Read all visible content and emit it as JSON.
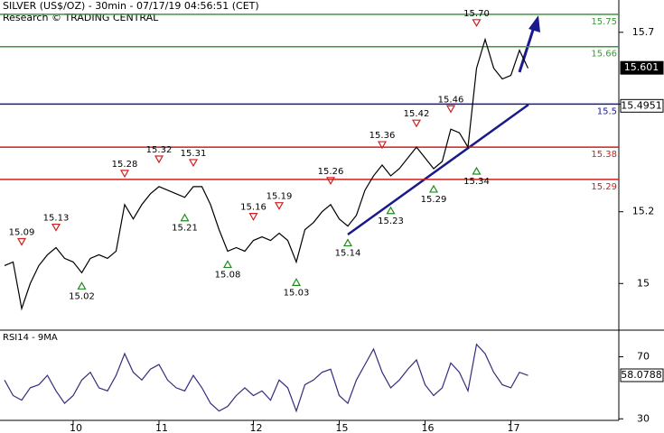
{
  "chart_data": [
    {
      "type": "line",
      "title": "SILVER (US$/OZ) - 30min - 07/17/19 04:56:51 (CET)",
      "subtitle": "Research © TRADING CENTRAL",
      "categories": [
        null,
        null,
        null,
        null,
        null,
        null,
        null,
        null,
        "10",
        null,
        null,
        null,
        null,
        null,
        null,
        null,
        null,
        null,
        "11",
        null,
        null,
        null,
        null,
        null,
        null,
        null,
        null,
        null,
        null,
        "12",
        null,
        null,
        null,
        null,
        null,
        null,
        null,
        null,
        null,
        "15",
        null,
        null,
        null,
        null,
        null,
        null,
        null,
        null,
        null,
        "16",
        null,
        null,
        null,
        null,
        null,
        null,
        null,
        null,
        null,
        "17",
        null,
        null
      ],
      "series": [
        {
          "color": "#000000",
          "values": [
            15.05,
            15.06,
            14.93,
            15.0,
            15.05,
            15.08,
            15.1,
            15.07,
            15.06,
            15.03,
            15.07,
            15.08,
            15.07,
            15.09,
            15.22,
            15.18,
            15.22,
            15.25,
            15.27,
            15.26,
            15.25,
            15.24,
            15.27,
            15.27,
            15.22,
            15.15,
            15.09,
            15.1,
            15.09,
            15.12,
            15.13,
            15.12,
            15.14,
            15.12,
            15.06,
            15.15,
            15.17,
            15.2,
            15.22,
            15.18,
            15.16,
            15.19,
            15.26,
            15.3,
            15.33,
            15.3,
            15.32,
            15.35,
            15.38,
            15.35,
            15.32,
            15.34,
            15.43,
            15.42,
            15.38,
            15.6,
            15.68,
            15.6,
            15.57,
            15.58,
            15.65,
            15.6
          ]
        }
      ],
      "ylim": [
        14.87,
        15.79
      ],
      "yticks": [
        15.0,
        15.2,
        15.5,
        15.7
      ],
      "levels": [
        {
          "value": 15.75,
          "color": "#3a9a3a"
        },
        {
          "value": 15.66,
          "color": "#3a9a3a"
        },
        {
          "value": 15.5,
          "color": "#1a1a8c"
        },
        {
          "value": 15.38,
          "color": "#c82020"
        },
        {
          "value": 15.29,
          "color": "#c82020"
        }
      ],
      "peaks": {
        "color": "#d02020",
        "values": [
          null,
          null,
          15.09,
          null,
          null,
          null,
          15.13,
          null,
          null,
          null,
          null,
          null,
          null,
          null,
          15.28,
          null,
          null,
          null,
          15.32,
          null,
          null,
          null,
          15.31,
          null,
          null,
          null,
          null,
          null,
          null,
          15.16,
          null,
          null,
          15.19,
          null,
          null,
          null,
          null,
          null,
          15.26,
          null,
          null,
          null,
          null,
          null,
          15.36,
          null,
          null,
          null,
          15.42,
          null,
          null,
          null,
          15.46,
          null,
          null,
          15.7,
          null,
          null,
          null,
          null,
          null,
          null
        ],
        "value_labels": [
          null,
          null,
          "15.09",
          null,
          null,
          null,
          "15.13",
          null,
          null,
          null,
          null,
          null,
          null,
          null,
          "15.28",
          null,
          null,
          null,
          "15.32",
          null,
          null,
          null,
          "15.31",
          null,
          null,
          null,
          null,
          null,
          null,
          "15.16",
          null,
          null,
          "15.19",
          null,
          null,
          null,
          null,
          null,
          "15.26",
          null,
          null,
          null,
          null,
          null,
          "15.36",
          null,
          null,
          null,
          "15.42",
          null,
          null,
          null,
          "15.46",
          null,
          null,
          "15.70",
          null,
          null,
          null,
          null,
          null,
          null
        ]
      },
      "troughs": {
        "color": "#208a20",
        "values": [
          null,
          null,
          null,
          null,
          null,
          null,
          null,
          null,
          null,
          15.02,
          null,
          null,
          null,
          null,
          null,
          null,
          null,
          null,
          null,
          null,
          null,
          15.21,
          null,
          null,
          null,
          null,
          15.08,
          null,
          null,
          null,
          null,
          null,
          null,
          null,
          15.03,
          null,
          null,
          null,
          null,
          null,
          15.14,
          null,
          null,
          null,
          null,
          15.23,
          null,
          null,
          null,
          null,
          15.29,
          null,
          null,
          null,
          null,
          15.34,
          null,
          null,
          null,
          null,
          null,
          null
        ],
        "value_labels": [
          null,
          null,
          null,
          null,
          null,
          null,
          null,
          null,
          null,
          "15.02",
          null,
          null,
          null,
          null,
          null,
          null,
          null,
          null,
          null,
          null,
          null,
          "15.21",
          null,
          null,
          null,
          null,
          "15.08",
          null,
          null,
          null,
          null,
          null,
          null,
          null,
          "15.03",
          null,
          null,
          null,
          null,
          null,
          "15.14",
          null,
          null,
          null,
          null,
          "15.23",
          null,
          null,
          null,
          null,
          "15.29",
          null,
          null,
          null,
          null,
          "15.34",
          null,
          null,
          null,
          null,
          null,
          null
        ]
      },
      "price_tags": [
        {
          "value": 15.601,
          "color": "#000000"
        },
        {
          "value": 15.4951,
          "color": "#ffffff"
        }
      ]
    },
    {
      "type": "line",
      "title": "RSI14 - 9MA",
      "series": [
        {
          "color": "#3a2a7a",
          "values": [
            55,
            45,
            42,
            50,
            52,
            58,
            48,
            40,
            45,
            55,
            60,
            50,
            48,
            58,
            72,
            60,
            55,
            62,
            65,
            55,
            50,
            48,
            58,
            50,
            40,
            35,
            38,
            45,
            50,
            45,
            48,
            42,
            55,
            50,
            35,
            52,
            55,
            60,
            62,
            45,
            40,
            55,
            65,
            75,
            60,
            50,
            55,
            62,
            68,
            52,
            45,
            50,
            66,
            60,
            48,
            78,
            72,
            60,
            52,
            50,
            60,
            58
          ]
        }
      ],
      "ylim": [
        29,
        86
      ],
      "yticks": [
        30,
        70
      ],
      "price_tags": [
        {
          "value": 58.0788,
          "color": "#ffffff"
        }
      ]
    }
  ]
}
